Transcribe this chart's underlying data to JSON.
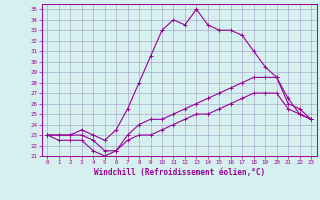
{
  "title": "",
  "xlabel": "Windchill (Refroidissement éolien,°C)",
  "ylabel": "",
  "background_color": "#d6f0f0",
  "grid_color": "#aaaacc",
  "line_color": "#990099",
  "xlim": [
    -0.5,
    23.5
  ],
  "ylim": [
    21,
    35.5
  ],
  "xticks": [
    0,
    1,
    2,
    3,
    4,
    5,
    6,
    7,
    8,
    9,
    10,
    11,
    12,
    13,
    14,
    15,
    16,
    17,
    18,
    19,
    20,
    21,
    22,
    23
  ],
  "yticks": [
    21,
    22,
    23,
    24,
    25,
    26,
    27,
    28,
    29,
    30,
    31,
    32,
    33,
    34,
    35
  ],
  "line1_x": [
    0,
    1,
    2,
    3,
    4,
    5,
    6,
    7,
    8,
    9,
    10,
    11,
    12,
    13,
    14,
    15,
    16,
    17,
    18,
    19,
    20,
    21,
    22,
    23
  ],
  "line1_y": [
    23.0,
    23.0,
    23.0,
    23.5,
    23.0,
    22.5,
    23.5,
    25.5,
    28.0,
    30.5,
    33.0,
    34.0,
    33.5,
    35.0,
    33.5,
    33.0,
    33.0,
    32.5,
    31.0,
    29.5,
    28.5,
    26.0,
    25.5,
    24.5
  ],
  "line2_x": [
    0,
    1,
    2,
    3,
    4,
    5,
    6,
    7,
    8,
    9,
    10,
    11,
    12,
    13,
    14,
    15,
    16,
    17,
    18,
    19,
    20,
    21,
    22,
    23
  ],
  "line2_y": [
    23.0,
    23.0,
    23.0,
    23.0,
    22.5,
    21.5,
    21.5,
    23.0,
    24.0,
    24.5,
    24.5,
    25.0,
    25.5,
    26.0,
    26.5,
    27.0,
    27.5,
    28.0,
    28.5,
    28.5,
    28.5,
    26.5,
    25.0,
    24.5
  ],
  "line3_x": [
    0,
    1,
    2,
    3,
    4,
    5,
    6,
    7,
    8,
    9,
    10,
    11,
    12,
    13,
    14,
    15,
    16,
    17,
    18,
    19,
    20,
    21,
    22,
    23
  ],
  "line3_y": [
    23.0,
    22.5,
    22.5,
    22.5,
    21.5,
    21.0,
    21.5,
    22.5,
    23.0,
    23.0,
    23.5,
    24.0,
    24.5,
    25.0,
    25.0,
    25.5,
    26.0,
    26.5,
    27.0,
    27.0,
    27.0,
    25.5,
    25.0,
    24.5
  ]
}
